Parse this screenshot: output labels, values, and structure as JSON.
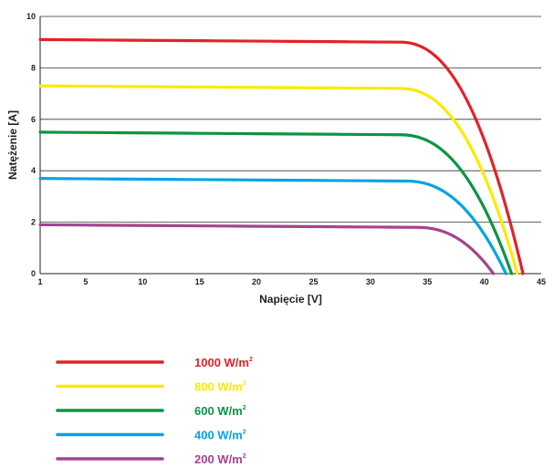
{
  "chart_data": {
    "type": "line",
    "xlabel": "Napięcie [V]",
    "ylabel": "Natężenie [A]",
    "xlim": [
      1,
      45
    ],
    "ylim": [
      0,
      10
    ],
    "xticks": [
      1,
      5,
      10,
      15,
      20,
      25,
      30,
      35,
      40,
      45
    ],
    "yticks": [
      0,
      2,
      4,
      6,
      8,
      10
    ],
    "grid": "horizontal",
    "legend_position": "bottom-left",
    "series": [
      {
        "name": "1000 W/m",
        "unit_sup": "2",
        "color": "#e32228",
        "isc": 9.1,
        "imp": 9.0,
        "vknee": 32.5,
        "voc": 43.4
      },
      {
        "name": "800 W/m",
        "unit_sup": "2",
        "color": "#fbea00",
        "isc": 7.3,
        "imp": 7.2,
        "vknee": 32.5,
        "voc": 42.9
      },
      {
        "name": "600 W/m",
        "unit_sup": "2",
        "color": "#0d9444",
        "isc": 5.5,
        "imp": 5.4,
        "vknee": 32.5,
        "voc": 42.4
      },
      {
        "name": "400 W/m",
        "unit_sup": "2",
        "color": "#00a4e4",
        "isc": 3.7,
        "imp": 3.6,
        "vknee": 33.0,
        "voc": 41.9
      },
      {
        "name": "200 W/m",
        "unit_sup": "2",
        "color": "#a4438f",
        "isc": 1.9,
        "imp": 1.8,
        "vknee": 34.0,
        "voc": 40.8
      }
    ]
  }
}
